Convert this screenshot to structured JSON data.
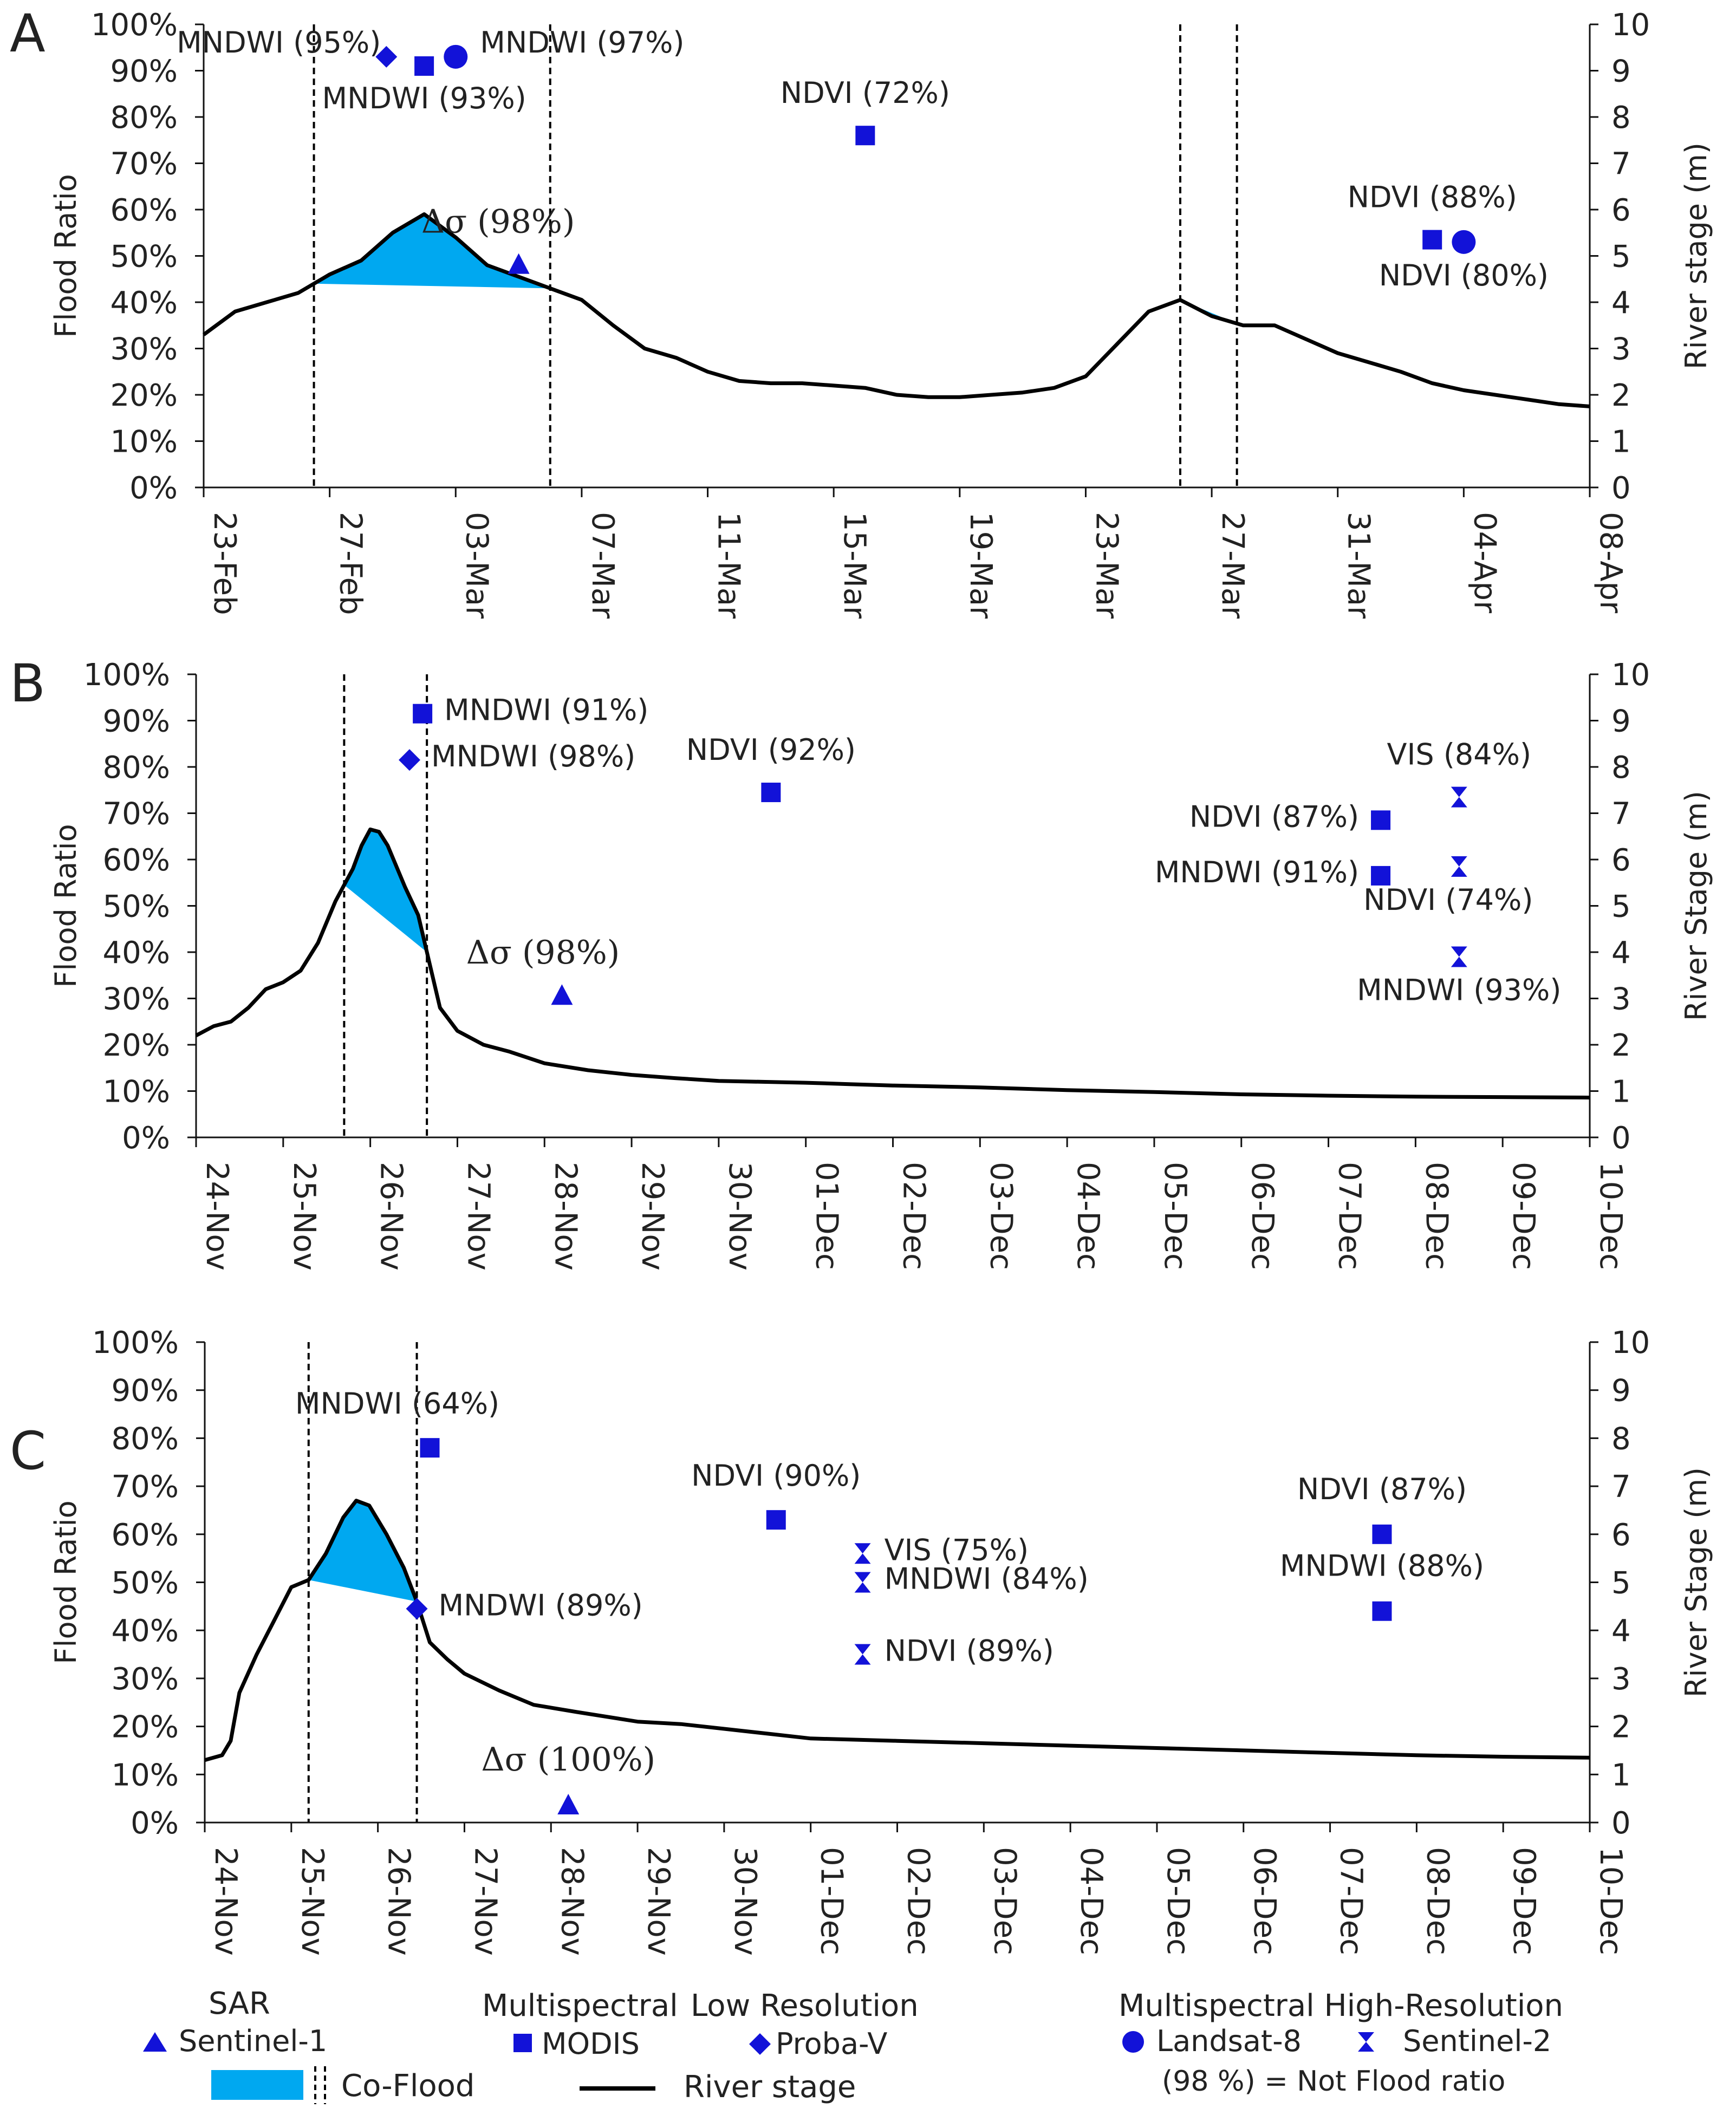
{
  "colors": {
    "marker": "#1212d8",
    "coflood": "#00a8f0",
    "line": "#000000",
    "text": "#222222"
  },
  "chart_data": [
    {
      "panel": "A",
      "type": "line",
      "ylabel": "Flood Ratio",
      "y2label": "River stage (m)",
      "yticks": [
        "0%",
        "10%",
        "20%",
        "30%",
        "40%",
        "50%",
        "60%",
        "70%",
        "80%",
        "90%",
        "100%"
      ],
      "y2ticks": [
        "0",
        "1",
        "2",
        "3",
        "4",
        "5",
        "6",
        "7",
        "8",
        "9",
        "10"
      ],
      "ylim": [
        0,
        100
      ],
      "y2lim": [
        0,
        10
      ],
      "xlim": [
        0,
        44
      ],
      "xticks": [
        {
          "x": 0,
          "label": "23-Feb"
        },
        {
          "x": 4,
          "label": "27-Feb"
        },
        {
          "x": 8,
          "label": "03-Mar"
        },
        {
          "x": 12,
          "label": "07-Mar"
        },
        {
          "x": 16,
          "label": "11-Mar"
        },
        {
          "x": 20,
          "label": "15-Mar"
        },
        {
          "x": 24,
          "label": "19-Mar"
        },
        {
          "x": 28,
          "label": "23-Mar"
        },
        {
          "x": 32,
          "label": "27-Mar"
        },
        {
          "x": 36,
          "label": "31-Mar"
        },
        {
          "x": 40,
          "label": "04-Apr"
        },
        {
          "x": 44,
          "label": "08-Apr"
        }
      ],
      "river_stage": [
        [
          0,
          3.3
        ],
        [
          1,
          3.8
        ],
        [
          2,
          4.0
        ],
        [
          3,
          4.2
        ],
        [
          4,
          4.6
        ],
        [
          5,
          4.9
        ],
        [
          6,
          5.5
        ],
        [
          7,
          5.9
        ],
        [
          8,
          5.4
        ],
        [
          9,
          4.8
        ],
        [
          10,
          4.55
        ],
        [
          11,
          4.3
        ],
        [
          12,
          4.05
        ],
        [
          13,
          3.5
        ],
        [
          14,
          3.0
        ],
        [
          15,
          2.8
        ],
        [
          16,
          2.5
        ],
        [
          17,
          2.3
        ],
        [
          18,
          2.25
        ],
        [
          19,
          2.25
        ],
        [
          20,
          2.2
        ],
        [
          21,
          2.15
        ],
        [
          22,
          2.0
        ],
        [
          23,
          1.95
        ],
        [
          24,
          1.95
        ],
        [
          25,
          2.0
        ],
        [
          26,
          2.05
        ],
        [
          27,
          2.15
        ],
        [
          28,
          2.4
        ],
        [
          29,
          3.1
        ],
        [
          30,
          3.8
        ],
        [
          31,
          4.05
        ],
        [
          32,
          3.7
        ],
        [
          33,
          3.5
        ],
        [
          34,
          3.5
        ],
        [
          35,
          3.2
        ],
        [
          36,
          2.9
        ],
        [
          37,
          2.7
        ],
        [
          38,
          2.5
        ],
        [
          39,
          2.25
        ],
        [
          40,
          2.1
        ],
        [
          41,
          2.0
        ],
        [
          42,
          1.9
        ],
        [
          43,
          1.8
        ],
        [
          44,
          1.75
        ]
      ],
      "coflood_windows": [
        [
          3.5,
          11.0
        ],
        [
          31.0,
          32.8
        ]
      ],
      "points": [
        {
          "x": 5.8,
          "y": 93,
          "marker": "diamond",
          "label": "MNDWI (95%)",
          "anchor": "end",
          "ox": -10,
          "oy": -8
        },
        {
          "x": 7,
          "y": 91,
          "marker": "square",
          "label": "MNDWI (93%)",
          "anchor": "middle",
          "ox": 0,
          "oy": 78
        },
        {
          "x": 8,
          "y": 93,
          "marker": "circle",
          "label": "MNDWI (97%)",
          "anchor": "start",
          "ox": 45,
          "oy": -8
        },
        {
          "x": 10,
          "y": 48,
          "marker": "triangle",
          "label": "Δσ (98%)",
          "anchor": "middle",
          "ox": -38,
          "oy": -60,
          "serif": true
        },
        {
          "x": 21,
          "y": 76,
          "marker": "square",
          "label": "NDVI (72%)",
          "anchor": "middle",
          "ox": 0,
          "oy": -60
        },
        {
          "x": 39,
          "y": 53.5,
          "marker": "square",
          "label": "NDVI (88%)",
          "anchor": "middle",
          "ox": 0,
          "oy": -60
        },
        {
          "x": 40,
          "y": 53,
          "marker": "circle",
          "label": "NDVI (80%)",
          "anchor": "middle",
          "ox": 0,
          "oy": 80
        }
      ]
    },
    {
      "panel": "B",
      "type": "line",
      "ylabel": "Flood  Ratio",
      "y2label": "River Stage (m)",
      "yticks": [
        "0%",
        "10%",
        "20%",
        "30%",
        "40%",
        "50%",
        "60%",
        "70%",
        "80%",
        "90%",
        "100%"
      ],
      "y2ticks": [
        "0",
        "1",
        "2",
        "3",
        "4",
        "5",
        "6",
        "7",
        "8",
        "9",
        "10"
      ],
      "ylim": [
        0,
        100
      ],
      "y2lim": [
        0,
        10
      ],
      "xlim": [
        0,
        16
      ],
      "xticks": [
        {
          "x": 0,
          "label": "24-Nov"
        },
        {
          "x": 1,
          "label": "25-Nov"
        },
        {
          "x": 2,
          "label": "26-Nov"
        },
        {
          "x": 3,
          "label": "27-Nov"
        },
        {
          "x": 4,
          "label": "28-Nov"
        },
        {
          "x": 5,
          "label": "29-Nov"
        },
        {
          "x": 6,
          "label": "30-Nov"
        },
        {
          "x": 7,
          "label": "01-Dec"
        },
        {
          "x": 8,
          "label": "02-Dec"
        },
        {
          "x": 9,
          "label": "03-Dec"
        },
        {
          "x": 10,
          "label": "04-Dec"
        },
        {
          "x": 11,
          "label": "05-Dec"
        },
        {
          "x": 12,
          "label": "06-Dec"
        },
        {
          "x": 13,
          "label": "07-Dec"
        },
        {
          "x": 14,
          "label": "08-Dec"
        },
        {
          "x": 15,
          "label": "09-Dec"
        },
        {
          "x": 16,
          "label": "10-Dec"
        }
      ],
      "river_stage": [
        [
          0,
          2.2
        ],
        [
          0.2,
          2.4
        ],
        [
          0.4,
          2.5
        ],
        [
          0.6,
          2.8
        ],
        [
          0.8,
          3.2
        ],
        [
          1.0,
          3.35
        ],
        [
          1.2,
          3.6
        ],
        [
          1.4,
          4.2
        ],
        [
          1.6,
          5.1
        ],
        [
          1.8,
          5.8
        ],
        [
          1.9,
          6.3
        ],
        [
          2.0,
          6.65
        ],
        [
          2.1,
          6.6
        ],
        [
          2.2,
          6.3
        ],
        [
          2.4,
          5.4
        ],
        [
          2.55,
          4.8
        ],
        [
          2.7,
          3.6
        ],
        [
          2.8,
          2.8
        ],
        [
          3.0,
          2.3
        ],
        [
          3.3,
          2.0
        ],
        [
          3.6,
          1.85
        ],
        [
          4.0,
          1.6
        ],
        [
          4.5,
          1.45
        ],
        [
          5.0,
          1.35
        ],
        [
          5.5,
          1.28
        ],
        [
          6.0,
          1.22
        ],
        [
          6.5,
          1.2
        ],
        [
          7.0,
          1.18
        ],
        [
          7.5,
          1.15
        ],
        [
          8.0,
          1.12
        ],
        [
          9.0,
          1.08
        ],
        [
          10.0,
          1.02
        ],
        [
          11.0,
          0.98
        ],
        [
          12.0,
          0.93
        ],
        [
          13.0,
          0.9
        ],
        [
          14.0,
          0.88
        ],
        [
          15.0,
          0.87
        ],
        [
          16.0,
          0.86
        ]
      ],
      "coflood_windows": [
        [
          1.7,
          2.65
        ]
      ],
      "points": [
        {
          "x": 2.6,
          "y": 91.5,
          "marker": "square",
          "label": "MNDWI (91%)",
          "anchor": "start",
          "ox": 40,
          "oy": 12
        },
        {
          "x": 2.45,
          "y": 81.5,
          "marker": "diamond",
          "label": "MNDWI (98%)",
          "anchor": "start",
          "ox": 40,
          "oy": 12
        },
        {
          "x": 4.2,
          "y": 30.5,
          "marker": "triangle",
          "label": "Δσ (98%)",
          "anchor": "middle",
          "ox": -35,
          "oy": -60,
          "serif": true
        },
        {
          "x": 6.6,
          "y": 74.5,
          "marker": "square",
          "label": "NDVI (92%)",
          "anchor": "middle",
          "ox": 0,
          "oy": -60
        },
        {
          "x": 13.6,
          "y": 68.5,
          "marker": "square",
          "label": "NDVI (87%)",
          "anchor": "end",
          "ox": -40,
          "oy": 12
        },
        {
          "x": 13.6,
          "y": 56.5,
          "marker": "square",
          "label": "MNDWI (91%)",
          "anchor": "end",
          "ox": -40,
          "oy": 12
        },
        {
          "x": 14.5,
          "y": 73.5,
          "marker": "hourglass",
          "label": "VIS (84%)",
          "anchor": "middle",
          "ox": 0,
          "oy": -60
        },
        {
          "x": 14.5,
          "y": 58.5,
          "marker": "hourglass",
          "label": "NDVI (74%)",
          "anchor": "middle",
          "ox": -20,
          "oy": 80
        },
        {
          "x": 14.5,
          "y": 39,
          "marker": "hourglass",
          "label": "MNDWI (93%)",
          "anchor": "middle",
          "ox": 0,
          "oy": 80
        }
      ]
    },
    {
      "panel": "C",
      "type": "line",
      "ylabel": "Flood  Ratio",
      "y2label": "River Stage (m)",
      "yticks": [
        "0%",
        "10%",
        "20%",
        "30%",
        "40%",
        "50%",
        "60%",
        "70%",
        "80%",
        "90%",
        "100%"
      ],
      "y2ticks": [
        "0",
        "1",
        "2",
        "3",
        "4",
        "5",
        "6",
        "7",
        "8",
        "9",
        "10"
      ],
      "ylim": [
        0,
        100
      ],
      "y2lim": [
        0,
        10
      ],
      "xlim": [
        0,
        16
      ],
      "xticks": [
        {
          "x": 0,
          "label": "24-Nov"
        },
        {
          "x": 1,
          "label": "25-Nov"
        },
        {
          "x": 2,
          "label": "26-Nov"
        },
        {
          "x": 3,
          "label": "27-Nov"
        },
        {
          "x": 4,
          "label": "28-Nov"
        },
        {
          "x": 5,
          "label": "29-Nov"
        },
        {
          "x": 6,
          "label": "30-Nov"
        },
        {
          "x": 7,
          "label": "01-Dec"
        },
        {
          "x": 8,
          "label": "02-Dec"
        },
        {
          "x": 9,
          "label": "03-Dec"
        },
        {
          "x": 10,
          "label": "04-Dec"
        },
        {
          "x": 11,
          "label": "05-Dec"
        },
        {
          "x": 12,
          "label": "06-Dec"
        },
        {
          "x": 13,
          "label": "07-Dec"
        },
        {
          "x": 14,
          "label": "08-Dec"
        },
        {
          "x": 15,
          "label": "09-Dec"
        },
        {
          "x": 16,
          "label": "10-Dec"
        }
      ],
      "river_stage": [
        [
          0,
          1.3
        ],
        [
          0.2,
          1.4
        ],
        [
          0.3,
          1.7
        ],
        [
          0.4,
          2.7
        ],
        [
          0.6,
          3.5
        ],
        [
          0.8,
          4.2
        ],
        [
          1.0,
          4.9
        ],
        [
          1.2,
          5.05
        ],
        [
          1.4,
          5.6
        ],
        [
          1.6,
          6.35
        ],
        [
          1.75,
          6.7
        ],
        [
          1.9,
          6.6
        ],
        [
          2.1,
          6.0
        ],
        [
          2.3,
          5.3
        ],
        [
          2.45,
          4.6
        ],
        [
          2.6,
          3.75
        ],
        [
          2.8,
          3.4
        ],
        [
          3.0,
          3.1
        ],
        [
          3.4,
          2.75
        ],
        [
          3.8,
          2.45
        ],
        [
          4.3,
          2.3
        ],
        [
          5.0,
          2.1
        ],
        [
          5.5,
          2.05
        ],
        [
          6.0,
          1.95
        ],
        [
          6.5,
          1.85
        ],
        [
          7.0,
          1.75
        ],
        [
          8.0,
          1.7
        ],
        [
          9.0,
          1.65
        ],
        [
          10.0,
          1.6
        ],
        [
          11.0,
          1.55
        ],
        [
          12.0,
          1.5
        ],
        [
          13.0,
          1.45
        ],
        [
          14.0,
          1.4
        ],
        [
          15.0,
          1.37
        ],
        [
          16.0,
          1.35
        ]
      ],
      "coflood_windows": [
        [
          1.2,
          2.45
        ]
      ],
      "points": [
        {
          "x": 2.6,
          "y": 78,
          "marker": "square",
          "label": "MNDWI (64%)",
          "anchor": "middle",
          "ox": -60,
          "oy": -63
        },
        {
          "x": 2.45,
          "y": 44.5,
          "marker": "diamond",
          "label": "MNDWI (89%)",
          "anchor": "start",
          "ox": 40,
          "oy": 12
        },
        {
          "x": 4.2,
          "y": 3.5,
          "marker": "triangle",
          "label": "Δσ (100%)",
          "anchor": "middle",
          "ox": 0,
          "oy": -65,
          "serif": true
        },
        {
          "x": 6.6,
          "y": 63,
          "marker": "square",
          "label": "NDVI (90%)",
          "anchor": "middle",
          "ox": 0,
          "oy": -63
        },
        {
          "x": 7.6,
          "y": 56,
          "marker": "hourglass",
          "label": "VIS (75%)",
          "anchor": "start",
          "ox": 40,
          "oy": 12
        },
        {
          "x": 7.6,
          "y": 50,
          "marker": "hourglass",
          "label": "MNDWI (84%)",
          "anchor": "start",
          "ox": 40,
          "oy": 12
        },
        {
          "x": 7.6,
          "y": 35,
          "marker": "hourglass",
          "label": "NDVI (89%)",
          "anchor": "start",
          "ox": 40,
          "oy": 12
        },
        {
          "x": 13.6,
          "y": 60,
          "marker": "square",
          "label": "NDVI (87%)",
          "anchor": "middle",
          "ox": 0,
          "oy": -65
        },
        {
          "x": 13.6,
          "y": 44,
          "marker": "square",
          "label": "MNDWI (88%)",
          "anchor": "middle",
          "ox": 0,
          "oy": -65
        }
      ]
    }
  ],
  "legend": {
    "sar_title": "SAR",
    "sentinel1": "Sentinel-1",
    "multispectral_title": "Multispectral",
    "low_resolution_title": "Low Resolution",
    "modis": "MODIS",
    "probav": "Proba-V",
    "high_resolution_title": "Multispectral High-Resolution",
    "landsat8": "Landsat-8",
    "sentinel2": "Sentinel-2",
    "note": "(98 %) = Not Flood ratio",
    "coflood": "Co-Flood",
    "river_stage": "River stage"
  }
}
